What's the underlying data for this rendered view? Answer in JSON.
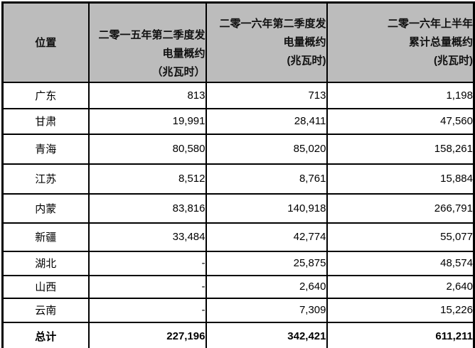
{
  "table": {
    "unit_note": "兆瓦时",
    "header": {
      "location": "位置",
      "col_2015_q2": {
        "lines": [
          "二零一五年第二季度发",
          "电量概约",
          "（兆瓦时）"
        ]
      },
      "col_2016_q2": {
        "lines": [
          "二零一六年第二季度发",
          "电量概约",
          "(兆瓦时)"
        ]
      },
      "col_2016_h1": {
        "lines": [
          "二零一六年上半年",
          "累计总量概约",
          "(兆瓦时)"
        ]
      }
    },
    "rows": [
      {
        "location": "广东",
        "gen_2015_q2": "813",
        "gen_2016_q2": "713",
        "total_2016_h1": "1,198"
      },
      {
        "location": "甘肃",
        "gen_2015_q2": "19,991",
        "gen_2016_q2": "28,411",
        "total_2016_h1": "47,560"
      },
      {
        "location": "青海",
        "gen_2015_q2": "80,580",
        "gen_2016_q2": "85,020",
        "total_2016_h1": "158,261"
      },
      {
        "location": "江苏",
        "gen_2015_q2": "8,512",
        "gen_2016_q2": "8,761",
        "total_2016_h1": "15,884"
      },
      {
        "location": "内蒙",
        "gen_2015_q2": "83,816",
        "gen_2016_q2": "140,918",
        "total_2016_h1": "266,791"
      },
      {
        "location": "新疆",
        "gen_2015_q2": "33,484",
        "gen_2016_q2": "42,774",
        "total_2016_h1": "55,077"
      },
      {
        "location": "湖北",
        "gen_2015_q2": "-",
        "gen_2016_q2": "25,875",
        "total_2016_h1": "48,574"
      },
      {
        "location": "山西",
        "gen_2015_q2": "-",
        "gen_2016_q2": "2,640",
        "total_2016_h1": "2,640"
      },
      {
        "location": "云南",
        "gen_2015_q2": "-",
        "gen_2016_q2": "7,309",
        "total_2016_h1": "15,226"
      }
    ],
    "total": {
      "location": "总计",
      "gen_2015_q2": "227,196",
      "gen_2016_q2": "342,421",
      "total_2016_h1": "611,211"
    },
    "colors": {
      "header_bg": "#bcbcbc",
      "border": "#000000",
      "text": "#000000"
    }
  }
}
